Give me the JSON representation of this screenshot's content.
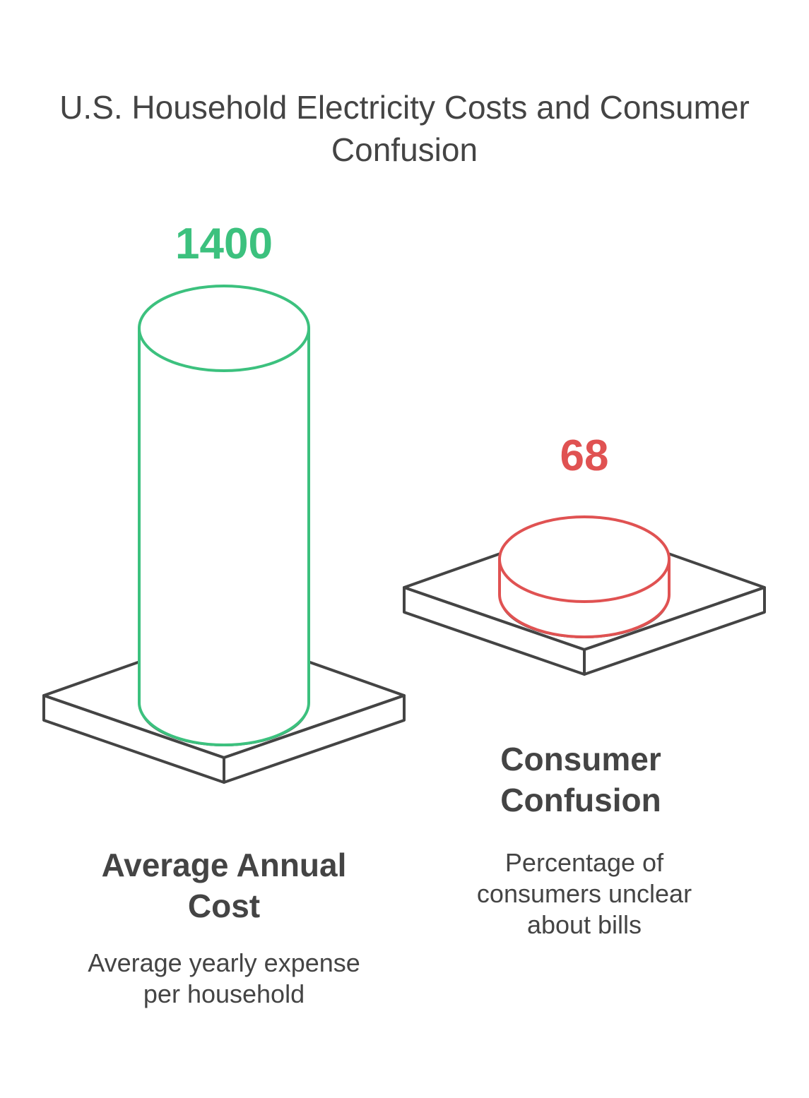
{
  "chart_data": {
    "type": "bar",
    "title": "U.S. Household Electricity Costs and Consumer Confusion",
    "categories": [
      "Average Annual Cost",
      "Consumer Confusion"
    ],
    "values": [
      1400,
      68
    ],
    "descriptions": [
      "Average yearly expense per household",
      "Percentage of consumers unclear about bills"
    ],
    "value_labels": [
      "1400",
      "68"
    ],
    "colors": [
      "#3cc17e",
      "#e05252"
    ],
    "outline_color": "#444444"
  }
}
